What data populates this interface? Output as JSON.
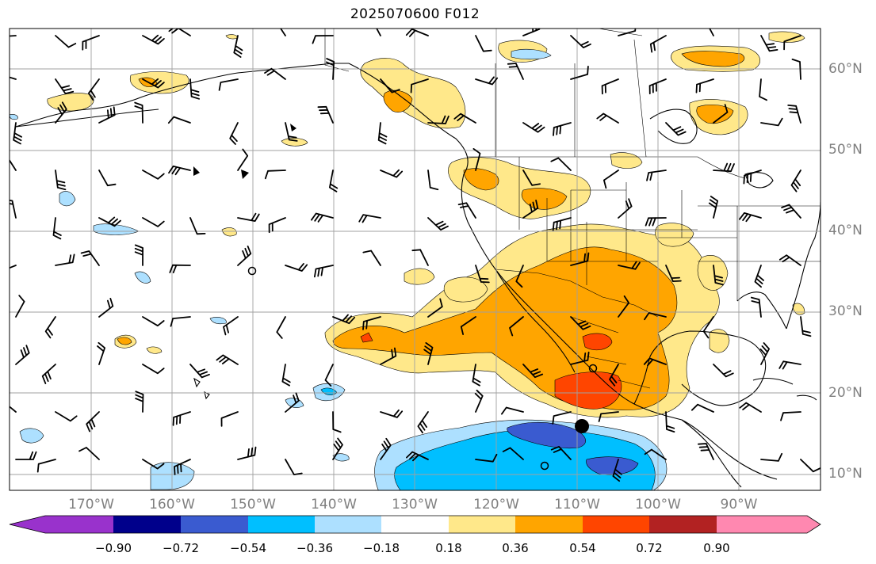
{
  "title": "2025070600 F012",
  "latitude_labels": [
    "60°N",
    "50°N",
    "40°N",
    "30°N",
    "20°N",
    "10°N"
  ],
  "longitude_labels": [
    "170°W",
    "160°W",
    "150°W",
    "140°W",
    "130°W",
    "120°W",
    "110°W",
    "100°W",
    "90°W"
  ],
  "colorbar": {
    "tick_labels": [
      "−0.90",
      "−0.72",
      "−0.54",
      "−0.36",
      "−0.18",
      "0.18",
      "0.36",
      "0.54",
      "0.72",
      "0.90"
    ],
    "colors": [
      "#9932cc",
      "#00008b",
      "#3a5bd0",
      "#00bfff",
      "#ade0ff",
      "#ffffff",
      "#ffe88a",
      "#ffa500",
      "#ff4500",
      "#b22222",
      "#ff88b0"
    ],
    "extend": "both"
  },
  "map_extent": {
    "lon_min": -180,
    "lon_max": -80,
    "lat_min": 8,
    "lat_max": 65
  },
  "grid": true
}
